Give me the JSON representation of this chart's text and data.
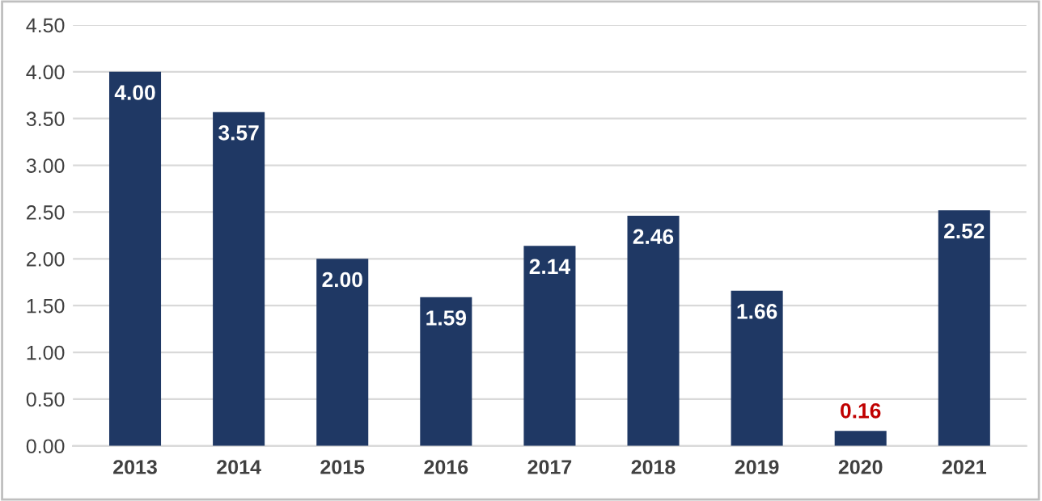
{
  "chart_data": {
    "type": "bar",
    "categories": [
      "2013",
      "2014",
      "2015",
      "2016",
      "2017",
      "2018",
      "2019",
      "2020",
      "2021"
    ],
    "values": [
      4.0,
      3.57,
      2.0,
      1.59,
      2.14,
      2.46,
      1.66,
      0.16,
      2.52
    ],
    "value_labels": [
      "4.00",
      "3.57",
      "2.00",
      "1.59",
      "2.14",
      "2.46",
      "1.66",
      "0.16",
      "2.52"
    ],
    "color": "#1f3864",
    "ylim": [
      0,
      4.5
    ],
    "yticks": [
      {
        "value": 0,
        "label": "0.00"
      },
      {
        "value": 0.5,
        "label": "0.50"
      },
      {
        "value": 1,
        "label": "1.00"
      },
      {
        "value": 1.5,
        "label": "1.50"
      },
      {
        "value": 2,
        "label": "2.00"
      },
      {
        "value": 2.5,
        "label": "2.50"
      },
      {
        "value": 3,
        "label": "3.00"
      },
      {
        "value": 3.5,
        "label": "3.50"
      },
      {
        "value": 4,
        "label": "4.00"
      },
      {
        "value": 4.5,
        "label": "4.50"
      }
    ],
    "grid": "y"
  }
}
